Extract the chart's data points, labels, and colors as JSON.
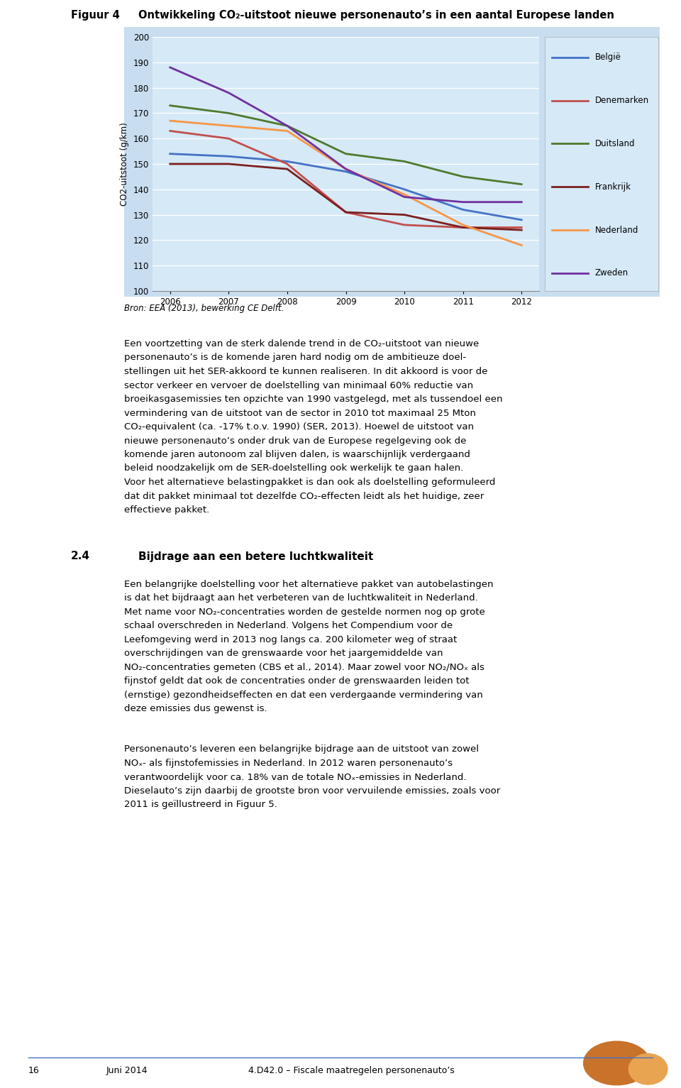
{
  "title_fignum": "Figuur 4",
  "title_text": "Ontwikkeling CO₂-uitstoot nieuwe personenauto’s in een aantal Europese landen",
  "years": [
    2006,
    2007,
    2008,
    2009,
    2010,
    2011,
    2012
  ],
  "series": {
    "België": {
      "color": "#4472C4",
      "values": [
        154,
        153,
        151,
        147,
        140,
        132,
        128
      ]
    },
    "Denemarken": {
      "color": "#C0504D",
      "values": [
        163,
        160,
        150,
        131,
        126,
        125,
        125
      ]
    },
    "Duitsland": {
      "color": "#4D7A2C",
      "values": [
        173,
        170,
        165,
        154,
        151,
        145,
        142
      ]
    },
    "Frankrijk": {
      "color": "#7B2020",
      "values": [
        150,
        150,
        148,
        131,
        130,
        125,
        124
      ]
    },
    "Nederland": {
      "color": "#F79646",
      "values": [
        167,
        165,
        163,
        148,
        138,
        126,
        118
      ]
    },
    "Zweden": {
      "color": "#7030A0",
      "values": [
        188,
        178,
        165,
        148,
        137,
        135,
        135
      ]
    }
  },
  "ylim": [
    100,
    200
  ],
  "yticks": [
    100,
    110,
    120,
    130,
    140,
    150,
    160,
    170,
    180,
    190,
    200
  ],
  "ylabel": "CO2-uitstoot (g/km)",
  "source": "Bron: EEA (2013), bewerking CE Delft.",
  "bg_color": "#C8DDF0",
  "chart_bg": "#D6E9F7",
  "page_bg": "#FFFFFF",
  "body_text_1_lines": [
    "Een voortzetting van de sterk dalende trend in de CO₂-uitstoot van nieuwe",
    "personenauto’s is de komende jaren hard nodig om de ambitieuze doel-",
    "stellingen uit het SER-akkoord te kunnen realiseren. In dit akkoord is voor de",
    "sector verkeer en vervoer de doelstelling van minimaal 60% reductie van",
    "broeikasgasemissies ten opzichte van 1990 vastgelegd, met als tussendoel een",
    "vermindering van de uitstoot van de sector in 2010 tot maximaal 25 Mton",
    "CO₂-equivalent (ca. -17% t.o.v. 1990) (SER, 2013). Hoewel de uitstoot van",
    "nieuwe personenauto’s onder druk van de Europese regelgeving ook de",
    "komende jaren autonoom zal blijven dalen, is waarschijnlijk verdergaand",
    "beleid noodzakelijk om de SER-doelstelling ook werkelijk te gaan halen.",
    "Voor het alternatieve belastingpakket is dan ook als doelstelling geformuleerd",
    "dat dit pakket minimaal tot dezelfde CO₂-effecten leidt als het huidige, zeer",
    "effectieve pakket."
  ],
  "section_num": "2.4",
  "section_title": "Bijdrage aan een betere luchtkwaliteit",
  "body_text_2_lines": [
    "Een belangrijke doelstelling voor het alternatieve pakket van autobelastingen",
    "is dat het bijdraagt aan het verbeteren van de luchtkwaliteit in Nederland.",
    "Met name voor NO₂-concentraties worden de gestelde normen nog op grote",
    "schaal overschreden in Nederland. Volgens het Compendium voor de",
    "Leefomgeving werd in 2013 nog langs ca. 200 kilometer weg of straat",
    "overschrijdingen van de grenswaarde voor het jaargemiddelde van",
    "NO₂-concentraties gemeten (CBS et al., 2014). Maar zowel voor NO₂/NOₓ als",
    "fijnstof geldt dat ook de concentraties onder de grenswaarden leiden tot",
    "(ernstige) gezondheidseffecten en dat een verdergaande vermindering van",
    "deze emissies dus gewenst is."
  ],
  "body_text_3_lines": [
    "Personenauto’s leveren een belangrijke bijdrage aan de uitstoot van zowel",
    "NOₓ- als fijnstofemissies in Nederland. In 2012 waren personenauto’s",
    "verantwoordelijk voor ca. 18% van de totale NOₓ-emissies in Nederland.",
    "Dieselauto’s zijn daarbij de grootste bron voor vervuilende emissies, zoals voor",
    "2011 is geïllustreerd in Figuur 5."
  ],
  "footer_page": "16",
  "footer_date": "Juni 2014",
  "footer_report": "4.D42.0 – Fiscale maatregelen personenauto’s"
}
